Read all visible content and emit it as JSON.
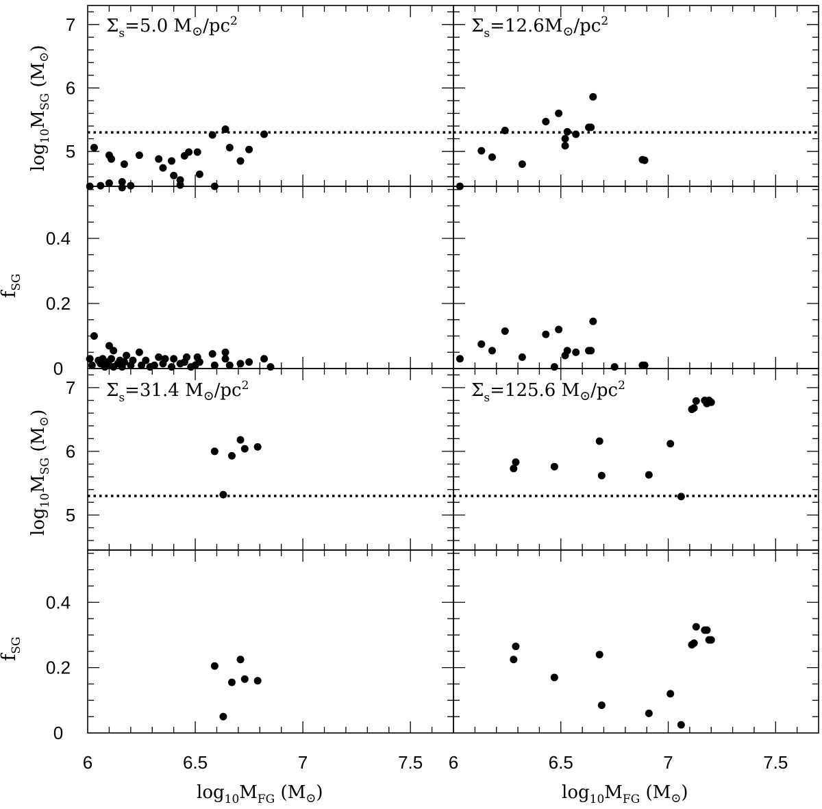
{
  "chart_data": {
    "type": "scatter",
    "xlim": [
      6.0,
      7.7
    ],
    "x_ticks": [
      6,
      6.5,
      7,
      7.5
    ],
    "x_tick_labels": [
      "6",
      "6.5",
      "7",
      "7.5"
    ],
    "xlabel": {
      "base": "log",
      "sub1": "10",
      "mid": "M",
      "sub2": "FG",
      "unit": " (M",
      "sun": "⊙",
      "close": ")"
    },
    "mass_panel": {
      "ylim": [
        4.45,
        7.3
      ],
      "y_ticks": [
        5,
        6,
        7
      ],
      "ylabel": {
        "base": "log",
        "sub1": "10",
        "mid": "M",
        "sub2": "SG",
        "unit": " (M",
        "sun": "⊙",
        "close": ")"
      },
      "threshold": 5.3,
      "threshold_style": "dotted"
    },
    "frac_panel": {
      "ylim": [
        0,
        0.56
      ],
      "y_ticks": [
        0,
        0.2,
        0.4
      ],
      "y_tick_labels": [
        "0",
        "0.2",
        "0.4"
      ],
      "ylabel": {
        "base": "f",
        "sub": "SG"
      }
    },
    "panels": [
      {
        "label": {
          "sigma": "Σ",
          "sub": "s",
          "value": "=5.0",
          "unit": " M",
          "sun": "⊙",
          "per": "/pc",
          "sup": "2"
        },
        "mass_points": [
          [
            6.01,
            4.45
          ],
          [
            6.03,
            5.06
          ],
          [
            6.06,
            4.46
          ],
          [
            6.1,
            4.94
          ],
          [
            6.1,
            4.5
          ],
          [
            6.11,
            4.88
          ],
          [
            6.16,
            4.43
          ],
          [
            6.16,
            4.52
          ],
          [
            6.17,
            4.8
          ],
          [
            6.2,
            4.46
          ],
          [
            6.24,
            4.94
          ],
          [
            6.33,
            4.88
          ],
          [
            6.35,
            4.74
          ],
          [
            6.39,
            4.85
          ],
          [
            6.4,
            4.62
          ],
          [
            6.43,
            4.47
          ],
          [
            6.43,
            4.55
          ],
          [
            6.45,
            4.93
          ],
          [
            6.47,
            4.99
          ],
          [
            6.51,
            4.99
          ],
          [
            6.52,
            4.64
          ],
          [
            6.58,
            5.26
          ],
          [
            6.59,
            4.45
          ],
          [
            6.64,
            5.35
          ],
          [
            6.66,
            5.06
          ],
          [
            6.71,
            4.85
          ],
          [
            6.75,
            5.03
          ],
          [
            6.82,
            5.27
          ]
        ],
        "frac_points": [
          [
            6.01,
            0.03
          ],
          [
            6.02,
            0.01
          ],
          [
            6.03,
            0.1
          ],
          [
            6.05,
            0.025
          ],
          [
            6.06,
            0.015
          ],
          [
            6.07,
            0.03
          ],
          [
            6.08,
            0.005
          ],
          [
            6.09,
            0.02
          ],
          [
            6.1,
            0.07
          ],
          [
            6.1,
            0.01
          ],
          [
            6.11,
            0.03
          ],
          [
            6.12,
            0.055
          ],
          [
            6.12,
            0.005
          ],
          [
            6.14,
            0.015
          ],
          [
            6.15,
            0.025
          ],
          [
            6.16,
            0.005
          ],
          [
            6.17,
            0.02
          ],
          [
            6.18,
            0.04
          ],
          [
            6.2,
            0.01
          ],
          [
            6.21,
            0.025
          ],
          [
            6.24,
            0.05
          ],
          [
            6.25,
            0.01
          ],
          [
            6.27,
            0.025
          ],
          [
            6.29,
            0.005
          ],
          [
            6.31,
            0.01
          ],
          [
            6.33,
            0.035
          ],
          [
            6.35,
            0.015
          ],
          [
            6.36,
            0.03
          ],
          [
            6.39,
            0.005
          ],
          [
            6.4,
            0.03
          ],
          [
            6.43,
            0.015
          ],
          [
            6.45,
            0.02
          ],
          [
            6.46,
            0.035
          ],
          [
            6.48,
            0.005
          ],
          [
            6.5,
            0.01
          ],
          [
            6.51,
            0.035
          ],
          [
            6.52,
            0.02
          ],
          [
            6.58,
            0.045
          ],
          [
            6.59,
            0.01
          ],
          [
            6.64,
            0.05
          ],
          [
            6.64,
            0.03
          ],
          [
            6.66,
            0.01
          ],
          [
            6.71,
            0.015
          ],
          [
            6.75,
            0.02
          ],
          [
            6.82,
            0.03
          ],
          [
            6.85,
            0.005
          ]
        ]
      },
      {
        "label": {
          "sigma": "Σ",
          "sub": "s",
          "value": "=12.6",
          "unit": "M",
          "sun": "⊙",
          "per": "/pc",
          "sup": "2"
        },
        "mass_points": [
          [
            6.03,
            4.45
          ],
          [
            6.13,
            5.01
          ],
          [
            6.18,
            4.91
          ],
          [
            6.24,
            5.33
          ],
          [
            6.32,
            4.8
          ],
          [
            6.43,
            5.47
          ],
          [
            6.49,
            5.6
          ],
          [
            6.52,
            5.2
          ],
          [
            6.52,
            5.09
          ],
          [
            6.53,
            5.31
          ],
          [
            6.57,
            5.27
          ],
          [
            6.63,
            5.38
          ],
          [
            6.64,
            5.38
          ],
          [
            6.65,
            5.86
          ],
          [
            6.88,
            4.87
          ],
          [
            6.89,
            4.86
          ]
        ],
        "frac_points": [
          [
            6.03,
            0.03
          ],
          [
            6.13,
            0.075
          ],
          [
            6.18,
            0.055
          ],
          [
            6.24,
            0.115
          ],
          [
            6.32,
            0.035
          ],
          [
            6.43,
            0.105
          ],
          [
            6.47,
            0.005
          ],
          [
            6.49,
            0.12
          ],
          [
            6.52,
            0.04
          ],
          [
            6.53,
            0.055
          ],
          [
            6.57,
            0.05
          ],
          [
            6.63,
            0.055
          ],
          [
            6.64,
            0.055
          ],
          [
            6.65,
            0.145
          ],
          [
            6.75,
            0.005
          ],
          [
            6.88,
            0.01
          ],
          [
            6.89,
            0.01
          ]
        ]
      },
      {
        "label": {
          "sigma": "Σ",
          "sub": "s",
          "value": "=31.4",
          "unit": " M",
          "sun": "⊙",
          "per": "/pc",
          "sup": "2"
        },
        "mass_points": [
          [
            6.59,
            6.0
          ],
          [
            6.63,
            5.32
          ],
          [
            6.67,
            5.93
          ],
          [
            6.71,
            6.18
          ],
          [
            6.73,
            6.04
          ],
          [
            6.79,
            6.07
          ]
        ],
        "frac_points": [
          [
            6.59,
            0.205
          ],
          [
            6.63,
            0.05
          ],
          [
            6.67,
            0.155
          ],
          [
            6.71,
            0.225
          ],
          [
            6.73,
            0.165
          ],
          [
            6.79,
            0.16
          ]
        ]
      },
      {
        "label": {
          "sigma": "Σ",
          "sub": "s",
          "value": "=125.6",
          "unit": " M",
          "sun": "⊙",
          "per": "/pc",
          "sup": "2"
        },
        "mass_points": [
          [
            6.28,
            5.73
          ],
          [
            6.29,
            5.83
          ],
          [
            6.47,
            5.76
          ],
          [
            6.68,
            6.16
          ],
          [
            6.69,
            5.62
          ],
          [
            6.91,
            5.63
          ],
          [
            7.01,
            6.12
          ],
          [
            7.06,
            5.29
          ],
          [
            7.11,
            6.66
          ],
          [
            7.12,
            6.68
          ],
          [
            7.13,
            6.79
          ],
          [
            7.17,
            6.8
          ],
          [
            7.18,
            6.75
          ],
          [
            7.19,
            6.8
          ],
          [
            7.2,
            6.77
          ]
        ],
        "frac_points": [
          [
            6.28,
            0.225
          ],
          [
            6.29,
            0.265
          ],
          [
            6.47,
            0.17
          ],
          [
            6.68,
            0.24
          ],
          [
            6.69,
            0.085
          ],
          [
            6.91,
            0.06
          ],
          [
            7.01,
            0.12
          ],
          [
            7.06,
            0.025
          ],
          [
            7.11,
            0.27
          ],
          [
            7.12,
            0.275
          ],
          [
            7.13,
            0.325
          ],
          [
            7.17,
            0.315
          ],
          [
            7.18,
            0.315
          ],
          [
            7.19,
            0.285
          ],
          [
            7.2,
            0.285
          ]
        ]
      }
    ]
  }
}
